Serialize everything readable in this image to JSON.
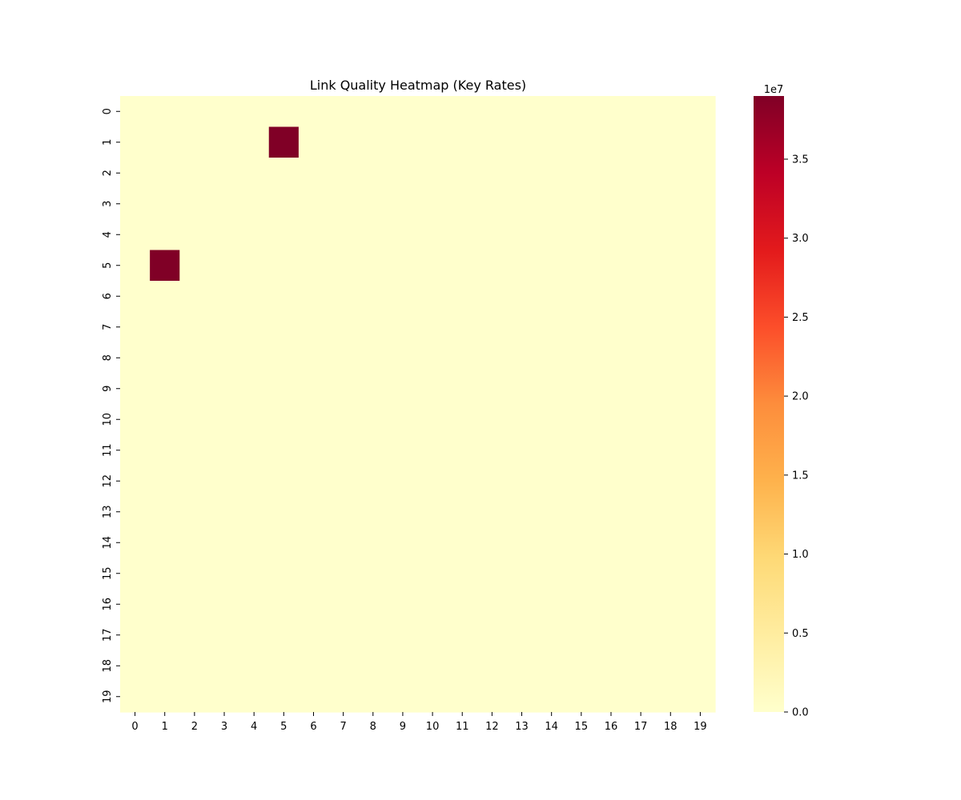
{
  "chart_data": {
    "type": "heatmap",
    "title": "Link Quality Heatmap (Key Rates)",
    "x_ticks": [
      "0",
      "1",
      "2",
      "3",
      "4",
      "5",
      "6",
      "7",
      "8",
      "9",
      "10",
      "11",
      "12",
      "13",
      "14",
      "15",
      "16",
      "17",
      "18",
      "19"
    ],
    "y_ticks": [
      "0",
      "1",
      "2",
      "3",
      "4",
      "5",
      "6",
      "7",
      "8",
      "9",
      "10",
      "11",
      "12",
      "13",
      "14",
      "15",
      "16",
      "17",
      "18",
      "19"
    ],
    "rows": 20,
    "cols": 20,
    "default_value": 0,
    "nonzero_cells": [
      {
        "row": 1,
        "col": 5,
        "value": 39000000
      },
      {
        "row": 5,
        "col": 1,
        "value": 39000000
      }
    ],
    "vmin": 0,
    "vmax": 39000000,
    "colormap": "YlOrRd",
    "colorbar": {
      "ticks": [
        0,
        0.5,
        1.0,
        1.5,
        2.0,
        2.5,
        3.0,
        3.5
      ],
      "tick_labels": [
        "0.0",
        "0.5",
        "1.0",
        "1.5",
        "2.0",
        "2.5",
        "3.0",
        "3.5"
      ],
      "multiplier_label": "1e7",
      "scale": 10000000
    },
    "grid": false
  }
}
